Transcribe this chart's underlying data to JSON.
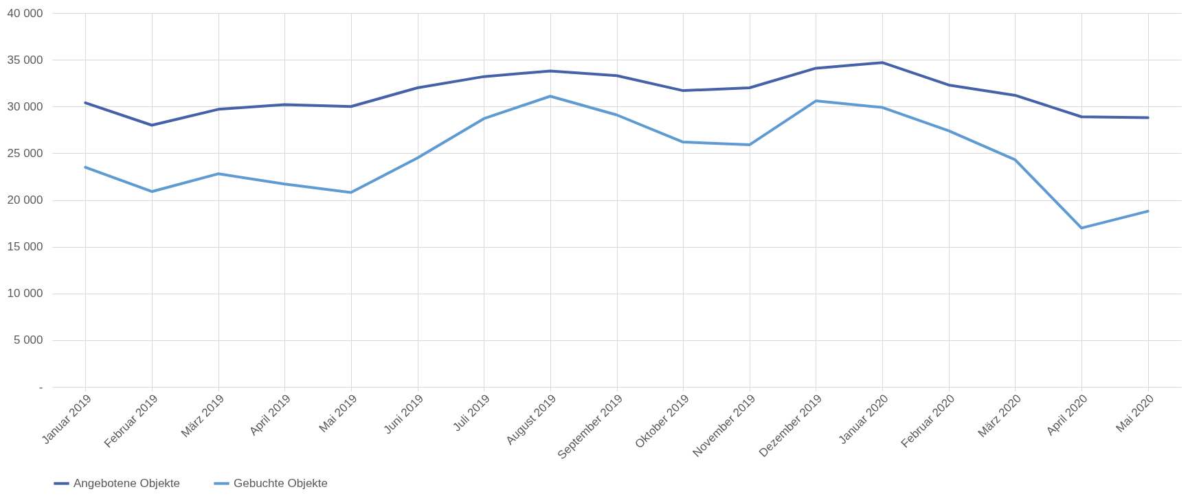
{
  "chart_data": {
    "type": "line",
    "categories": [
      "Januar 2019",
      "Februar 2019",
      "März 2019",
      "April 2019",
      "Mai 2019",
      "Juni 2019",
      "Juli 2019",
      "August 2019",
      "September 2019",
      "Oktober 2019",
      "November 2019",
      "Dezember 2019",
      "Januar 2020",
      "Februar 2020",
      "März 2020",
      "April 2020",
      "Mai 2020"
    ],
    "series": [
      {
        "name": "Angebotene Objekte",
        "color": "#4561a8",
        "values": [
          30400,
          28000,
          29700,
          30200,
          30000,
          32000,
          33200,
          33800,
          33300,
          31700,
          32000,
          34100,
          34700,
          32300,
          31200,
          28900,
          28800
        ]
      },
      {
        "name": "Gebuchte Objekte",
        "color": "#5e9bd3",
        "values": [
          23500,
          20900,
          22800,
          21700,
          20800,
          24500,
          28700,
          31100,
          29100,
          26200,
          25900,
          30600,
          29900,
          27400,
          24300,
          17000,
          18800
        ]
      }
    ],
    "ylim": [
      0,
      40000
    ],
    "yticks": [
      {
        "value": 0,
        "label": "-"
      },
      {
        "value": 5000,
        "label": "5 000"
      },
      {
        "value": 10000,
        "label": "10 000"
      },
      {
        "value": 15000,
        "label": "15 000"
      },
      {
        "value": 20000,
        "label": "20 000"
      },
      {
        "value": 25000,
        "label": "25 000"
      },
      {
        "value": 30000,
        "label": "30 000"
      },
      {
        "value": 35000,
        "label": "35 000"
      },
      {
        "value": 40000,
        "label": "40 000"
      }
    ],
    "grid": true,
    "legend": "bottom",
    "marker": "none",
    "line_style": "solid"
  }
}
